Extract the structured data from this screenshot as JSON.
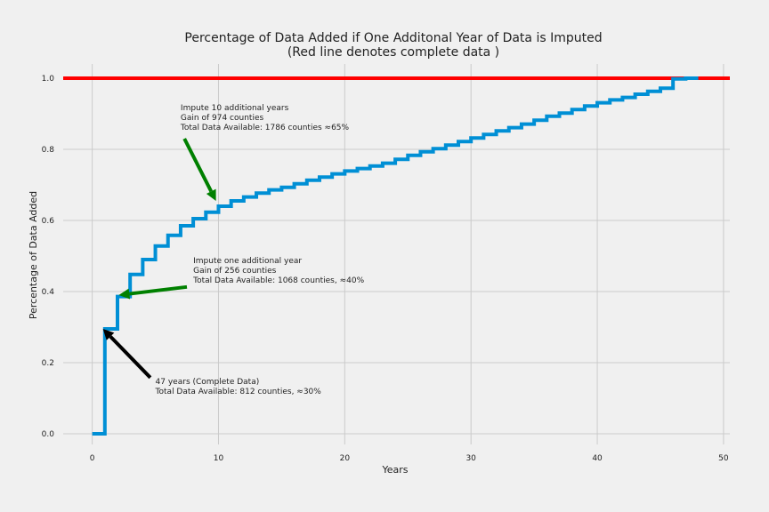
{
  "chart_data": {
    "type": "line",
    "title": "Percentage of Data Added if One Additonal Year of Data is Imputed",
    "subtitle": "(Red line denotes complete data )",
    "xlabel": "Years",
    "ylabel": "Percentage of Data Added",
    "xlim": [
      -2.3,
      50.5
    ],
    "ylim": [
      -0.03,
      1.04
    ],
    "xticks": [
      0,
      10,
      20,
      30,
      40,
      50
    ],
    "xtick_labels": [
      "0",
      "10",
      "20",
      "30",
      "40",
      "50"
    ],
    "yticks": [
      0.0,
      0.2,
      0.4,
      0.6,
      0.8,
      1.0
    ],
    "ytick_labels": [
      "0.0",
      "0.2",
      "0.4",
      "0.6",
      "0.8",
      "1.0"
    ],
    "grid": true,
    "series": [
      {
        "style": "step",
        "color": "#008fd5",
        "x": [
          0,
          1,
          2,
          3,
          4,
          5,
          6,
          7,
          8,
          9,
          10,
          11,
          12,
          13,
          14,
          15,
          16,
          17,
          18,
          19,
          20,
          21,
          22,
          23,
          24,
          25,
          26,
          27,
          28,
          29,
          30,
          31,
          32,
          33,
          34,
          35,
          36,
          37,
          38,
          39,
          40,
          41,
          42,
          43,
          44,
          45,
          46,
          47,
          48
        ],
        "y": [
          0.0,
          0.295,
          0.386,
          0.448,
          0.49,
          0.528,
          0.558,
          0.585,
          0.605,
          0.623,
          0.64,
          0.655,
          0.666,
          0.677,
          0.686,
          0.693,
          0.703,
          0.713,
          0.722,
          0.731,
          0.739,
          0.746,
          0.753,
          0.761,
          0.772,
          0.783,
          0.793,
          0.802,
          0.812,
          0.822,
          0.832,
          0.842,
          0.852,
          0.861,
          0.871,
          0.882,
          0.893,
          0.902,
          0.912,
          0.922,
          0.931,
          0.939,
          0.946,
          0.955,
          0.963,
          0.972,
          0.998,
          1.0,
          1.0
        ]
      }
    ],
    "reference_lines": [
      {
        "orientation": "horizontal",
        "y": 1.0,
        "color": "#ff0000"
      }
    ],
    "annotations": [
      {
        "lines": [
          "Impute 10 additional years",
          "Gain of 974 counties",
          "Total Data Available: 1786 counties ≈65%"
        ],
        "text_xy": [
          7.0,
          0.91
        ],
        "arrow_tail": [
          7.3,
          0.83
        ],
        "arrow_head": [
          9.8,
          0.655
        ],
        "arrow_color": "#008000"
      },
      {
        "lines": [
          "Impute one additional year",
          "Gain of 256 counties",
          "Total Data Available: 1068 counties, ≈40%"
        ],
        "text_xy": [
          8.0,
          0.48
        ],
        "arrow_tail": [
          7.5,
          0.413
        ],
        "arrow_head": [
          2.1,
          0.39
        ],
        "arrow_color": "#008000"
      },
      {
        "lines": [
          "47 years (Complete Data)",
          "Total Data Available: 812 counties, ≈30%"
        ],
        "text_xy": [
          5.0,
          0.14
        ],
        "arrow_tail": [
          4.6,
          0.158
        ],
        "arrow_head": [
          0.85,
          0.295
        ],
        "arrow_color": "#000000"
      }
    ]
  }
}
